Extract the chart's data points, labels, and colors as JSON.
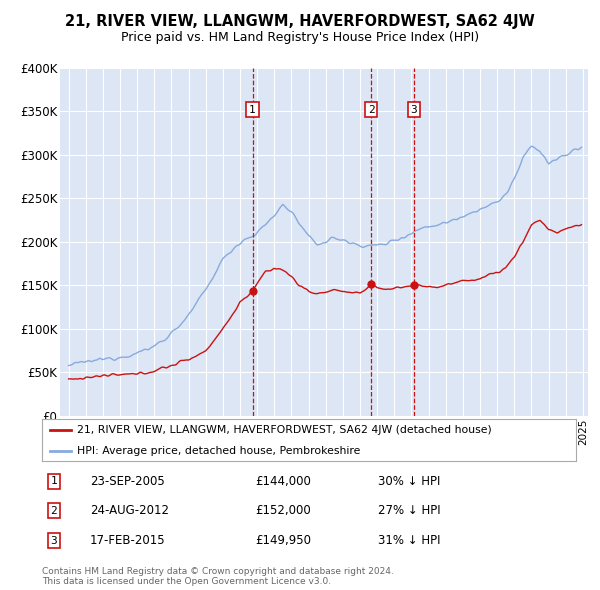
{
  "title": "21, RIVER VIEW, LLANGWM, HAVERFORDWEST, SA62 4JW",
  "subtitle": "Price paid vs. HM Land Registry's House Price Index (HPI)",
  "legend_line1": "21, RIVER VIEW, LLANGWM, HAVERFORDWEST, SA62 4JW (detached house)",
  "legend_line2": "HPI: Average price, detached house, Pembrokeshire",
  "transactions": [
    {
      "num": 1,
      "date": "23-SEP-2005",
      "price": "£144,000",
      "hpi": "30% ↓ HPI",
      "year": 2005.73,
      "price_val": 144000
    },
    {
      "num": 2,
      "date": "24-AUG-2012",
      "price": "£152,000",
      "hpi": "27% ↓ HPI",
      "year": 2012.65,
      "price_val": 152000
    },
    {
      "num": 3,
      "date": "17-FEB-2015",
      "price": "£149,950",
      "hpi": "31% ↓ HPI",
      "year": 2015.13,
      "price_val": 149950
    }
  ],
  "footnote1": "Contains HM Land Registry data © Crown copyright and database right 2024.",
  "footnote2": "This data is licensed under the Open Government Licence v3.0.",
  "ylim": [
    0,
    400000
  ],
  "yticks": [
    0,
    50000,
    100000,
    150000,
    200000,
    250000,
    300000,
    350000,
    400000
  ],
  "ytick_labels": [
    "£0",
    "£50K",
    "£100K",
    "£150K",
    "£200K",
    "£250K",
    "£300K",
    "£350K",
    "£400K"
  ],
  "fig_bg_color": "#ffffff",
  "plot_bg_color": "#dce6f5",
  "red_color": "#cc1111",
  "blue_color": "#88aadd",
  "grid_color": "#ffffff",
  "xlim_start": 1994.5,
  "xlim_end": 2025.3,
  "hpi_anchors_x": [
    1995.0,
    1996.0,
    1997.0,
    1998.0,
    1999.0,
    2000.0,
    2001.0,
    2002.0,
    2003.0,
    2004.0,
    2005.0,
    2006.0,
    2007.0,
    2007.5,
    2008.0,
    2008.5,
    2009.0,
    2009.5,
    2010.0,
    2010.5,
    2011.0,
    2011.5,
    2012.0,
    2012.5,
    2013.0,
    2013.5,
    2014.0,
    2014.5,
    2015.0,
    2015.5,
    2016.0,
    2017.0,
    2018.0,
    2019.0,
    2020.0,
    2020.5,
    2021.0,
    2021.5,
    2022.0,
    2022.5,
    2023.0,
    2023.5,
    2024.0,
    2024.5,
    2024.9
  ],
  "hpi_anchors_y": [
    58000,
    62000,
    65000,
    68000,
    72000,
    80000,
    95000,
    115000,
    145000,
    180000,
    200000,
    210000,
    230000,
    243000,
    235000,
    220000,
    205000,
    198000,
    200000,
    205000,
    202000,
    198000,
    197000,
    195000,
    196000,
    198000,
    202000,
    206000,
    210000,
    215000,
    218000,
    222000,
    230000,
    238000,
    245000,
    255000,
    272000,
    295000,
    310000,
    305000,
    290000,
    295000,
    300000,
    305000,
    308000
  ],
  "price_anchors_x": [
    1995.0,
    1996.0,
    1997.0,
    1998.0,
    1999.0,
    2000.0,
    2001.0,
    2002.0,
    2003.0,
    2004.0,
    2005.0,
    2005.73,
    2006.0,
    2006.5,
    2007.0,
    2007.5,
    2008.0,
    2008.5,
    2009.0,
    2009.5,
    2010.0,
    2010.5,
    2011.0,
    2011.5,
    2012.0,
    2012.65,
    2013.0,
    2013.5,
    2014.0,
    2014.5,
    2015.13,
    2015.5,
    2016.0,
    2016.5,
    2017.0,
    2018.0,
    2019.0,
    2019.5,
    2020.0,
    2020.5,
    2021.0,
    2021.5,
    2022.0,
    2022.5,
    2023.0,
    2023.5,
    2024.0,
    2024.5,
    2024.9
  ],
  "price_anchors_y": [
    42000,
    44000,
    46000,
    47000,
    48000,
    52000,
    58000,
    65000,
    75000,
    100000,
    130000,
    144000,
    152000,
    165000,
    170000,
    168000,
    160000,
    150000,
    143000,
    140000,
    143000,
    145000,
    143000,
    141000,
    140000,
    152000,
    148000,
    145000,
    147000,
    148000,
    149950,
    150000,
    149000,
    148000,
    150000,
    155000,
    158000,
    162000,
    165000,
    170000,
    183000,
    200000,
    220000,
    225000,
    215000,
    210000,
    215000,
    218000,
    220000
  ]
}
